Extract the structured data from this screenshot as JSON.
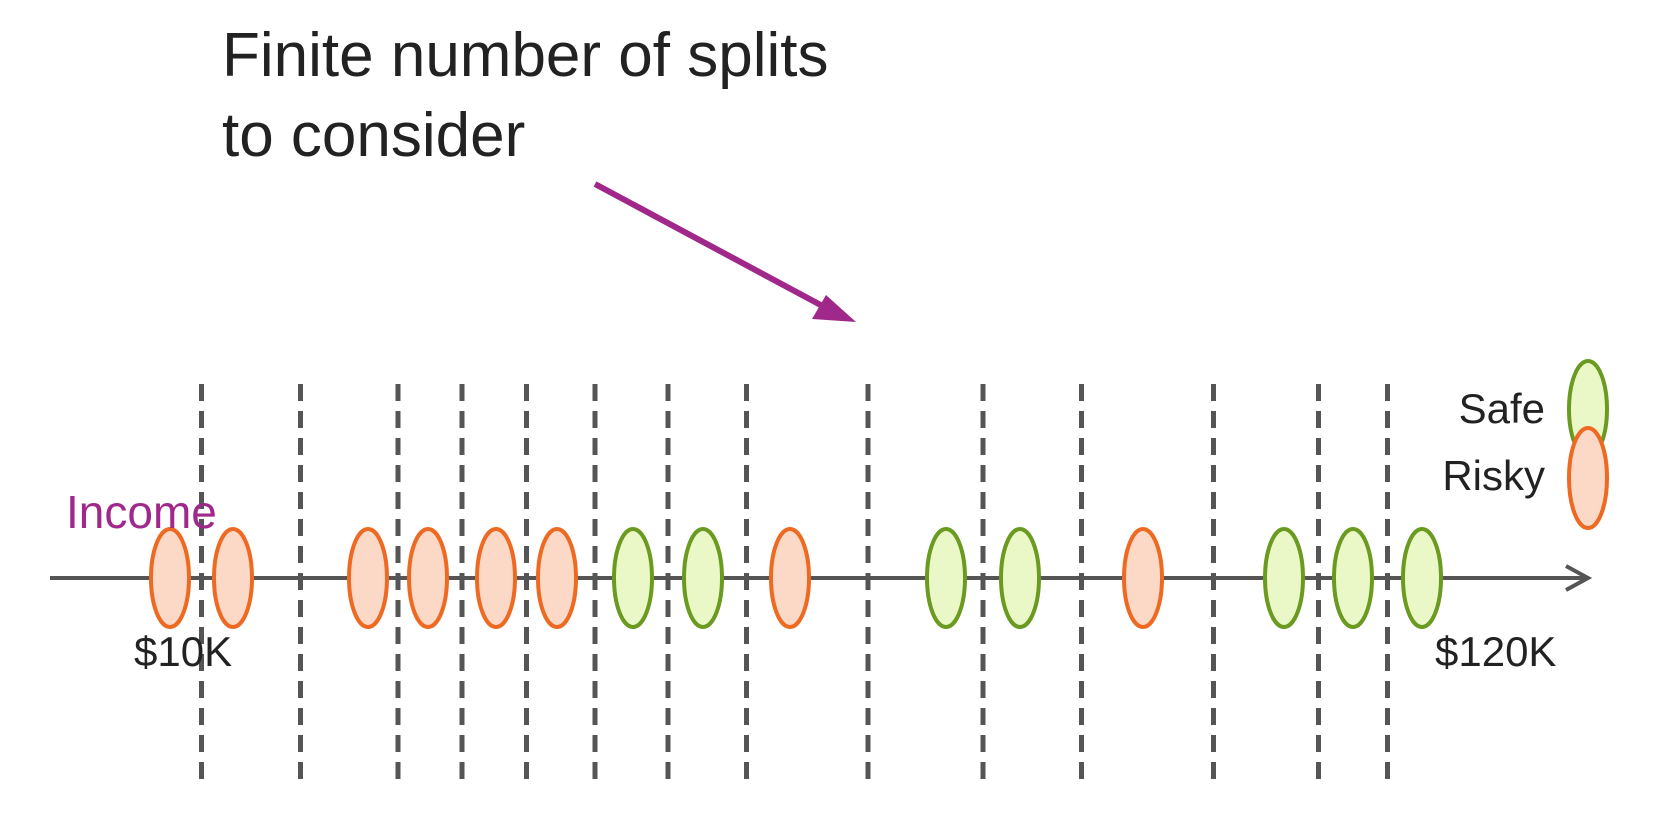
{
  "title": {
    "line1": "Finite number of splits",
    "line2": "to consider"
  },
  "axis": {
    "name": "Income",
    "min_label": "$10K",
    "max_label": "$120K"
  },
  "legend": {
    "safe_label": "Safe",
    "risky_label": "Risky"
  },
  "colors": {
    "safe_stroke": "#6a9a1f",
    "safe_fill": "#eaf8c8",
    "risky_stroke": "#ee6a22",
    "risky_fill": "#fbd9c6",
    "arrow": "#a0288a",
    "axis_name": "#a0288a",
    "axis_line": "#555555",
    "split_line": "#555555"
  },
  "points": [
    "risky",
    "risky",
    "risky",
    "risky",
    "risky",
    "risky",
    "safe",
    "safe",
    "risky",
    "safe",
    "safe",
    "risky",
    "safe",
    "safe",
    "safe"
  ]
}
